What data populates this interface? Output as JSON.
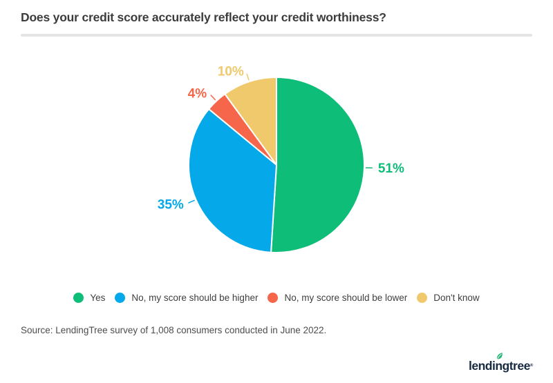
{
  "header": {
    "title": "Does your credit score accurately reflect your credit worthiness?"
  },
  "chart_data": {
    "type": "pie",
    "title": "Does your credit score accurately reflect your credit worthiness?",
    "start_angle": "12 o'clock, clockwise",
    "legend_position": "bottom",
    "slices": [
      {
        "label": "Yes",
        "value": 51,
        "display": "51%",
        "color": "#0ebd78"
      },
      {
        "label": "No, my score should be higher",
        "value": 35,
        "display": "35%",
        "color": "#05a8e8"
      },
      {
        "label": "No, my score should be lower",
        "value": 4,
        "display": "4%",
        "color": "#f5664a"
      },
      {
        "label": "Don't know",
        "value": 10,
        "display": "10%",
        "color": "#efc96b"
      }
    ]
  },
  "source": {
    "text": "Source: LendingTree survey of 1,008 consumers conducted in June 2022."
  },
  "logo": {
    "text": "lendingtree",
    "trademark": "®",
    "leaf_color": "#21b573",
    "navy_color": "#172a40"
  }
}
